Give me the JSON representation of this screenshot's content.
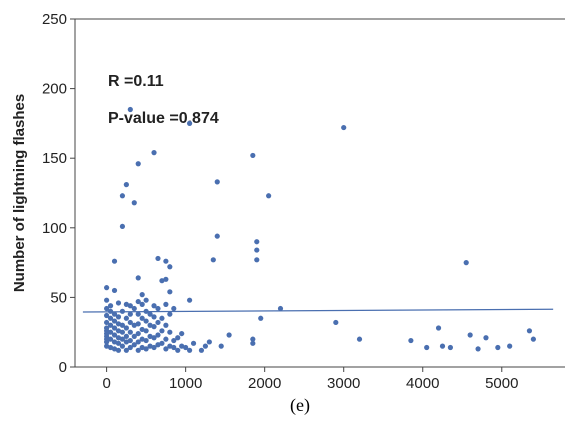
{
  "chart_data": {
    "type": "scatter",
    "title": "",
    "xlabel": "",
    "ylabel": "Number of lightning flashes",
    "xlim": [
      -400,
      5800
    ],
    "ylim": [
      0,
      250
    ],
    "xticks": [
      "0",
      "1000",
      "2000",
      "3000",
      "4000",
      "5000"
    ],
    "yticks": [
      "0",
      "50",
      "100",
      "150",
      "200",
      "250"
    ],
    "grid": false,
    "annotations": [
      "R =0.11",
      "P-value =0.874"
    ],
    "caption": "(e)",
    "point_color": "#4a6fb0",
    "line_color": "#4a6fb0",
    "regression_line": {
      "x": [
        -300,
        5650
      ],
      "y": [
        39.5,
        41.5
      ]
    },
    "points": [
      [
        0,
        15
      ],
      [
        0,
        18
      ],
      [
        0,
        20
      ],
      [
        0,
        22
      ],
      [
        0,
        24
      ],
      [
        0,
        26
      ],
      [
        0,
        28
      ],
      [
        0,
        32
      ],
      [
        0,
        37
      ],
      [
        0,
        42
      ],
      [
        0,
        48
      ],
      [
        0,
        57
      ],
      [
        50,
        14
      ],
      [
        50,
        20
      ],
      [
        50,
        25
      ],
      [
        50,
        30
      ],
      [
        50,
        35
      ],
      [
        50,
        40
      ],
      [
        50,
        44
      ],
      [
        100,
        13
      ],
      [
        100,
        18
      ],
      [
        100,
        23
      ],
      [
        100,
        28
      ],
      [
        100,
        33
      ],
      [
        100,
        38
      ],
      [
        100,
        55
      ],
      [
        100,
        76
      ],
      [
        150,
        12
      ],
      [
        150,
        17
      ],
      [
        150,
        21
      ],
      [
        150,
        26
      ],
      [
        150,
        31
      ],
      [
        150,
        36
      ],
      [
        150,
        46
      ],
      [
        200,
        15
      ],
      [
        200,
        20
      ],
      [
        200,
        25
      ],
      [
        200,
        30
      ],
      [
        200,
        40
      ],
      [
        200,
        101
      ],
      [
        200,
        123
      ],
      [
        250,
        12
      ],
      [
        250,
        18
      ],
      [
        250,
        22
      ],
      [
        250,
        28
      ],
      [
        250,
        35
      ],
      [
        250,
        45
      ],
      [
        250,
        131
      ],
      [
        300,
        14
      ],
      [
        300,
        19
      ],
      [
        300,
        25
      ],
      [
        300,
        32
      ],
      [
        300,
        38
      ],
      [
        300,
        44
      ],
      [
        300,
        185
      ],
      [
        350,
        16
      ],
      [
        350,
        22
      ],
      [
        350,
        30
      ],
      [
        350,
        42
      ],
      [
        350,
        118
      ],
      [
        400,
        12
      ],
      [
        400,
        18
      ],
      [
        400,
        24
      ],
      [
        400,
        31
      ],
      [
        400,
        38
      ],
      [
        400,
        47
      ],
      [
        400,
        64
      ],
      [
        400,
        146
      ],
      [
        450,
        14
      ],
      [
        450,
        20
      ],
      [
        450,
        27
      ],
      [
        450,
        35
      ],
      [
        450,
        45
      ],
      [
        450,
        52
      ],
      [
        500,
        13
      ],
      [
        500,
        19
      ],
      [
        500,
        26
      ],
      [
        500,
        33
      ],
      [
        500,
        40
      ],
      [
        500,
        48
      ],
      [
        550,
        15
      ],
      [
        550,
        22
      ],
      [
        550,
        30
      ],
      [
        550,
        38
      ],
      [
        600,
        14
      ],
      [
        600,
        21
      ],
      [
        600,
        29
      ],
      [
        600,
        36
      ],
      [
        600,
        44
      ],
      [
        600,
        154
      ],
      [
        650,
        16
      ],
      [
        650,
        23
      ],
      [
        650,
        32
      ],
      [
        650,
        42
      ],
      [
        650,
        78
      ],
      [
        700,
        17
      ],
      [
        700,
        26
      ],
      [
        700,
        35
      ],
      [
        700,
        62
      ],
      [
        750,
        13
      ],
      [
        750,
        20
      ],
      [
        750,
        30
      ],
      [
        750,
        45
      ],
      [
        750,
        63
      ],
      [
        750,
        76
      ],
      [
        800,
        15
      ],
      [
        800,
        25
      ],
      [
        800,
        38
      ],
      [
        800,
        54
      ],
      [
        800,
        72
      ],
      [
        850,
        14
      ],
      [
        850,
        19
      ],
      [
        850,
        42
      ],
      [
        900,
        12
      ],
      [
        900,
        21
      ],
      [
        950,
        15
      ],
      [
        950,
        24
      ],
      [
        1000,
        14
      ],
      [
        1050,
        12
      ],
      [
        1050,
        48
      ],
      [
        1050,
        175
      ],
      [
        1100,
        17
      ],
      [
        1200,
        12
      ],
      [
        1250,
        15
      ],
      [
        1300,
        18
      ],
      [
        1350,
        77
      ],
      [
        1400,
        94
      ],
      [
        1400,
        133
      ],
      [
        1450,
        15
      ],
      [
        1550,
        23
      ],
      [
        1850,
        17
      ],
      [
        1850,
        20
      ],
      [
        1850,
        152
      ],
      [
        1900,
        77
      ],
      [
        1900,
        84
      ],
      [
        1900,
        90
      ],
      [
        1950,
        35
      ],
      [
        2050,
        123
      ],
      [
        2200,
        42
      ],
      [
        2900,
        32
      ],
      [
        3000,
        172
      ],
      [
        3200,
        20
      ],
      [
        3850,
        19
      ],
      [
        4050,
        14
      ],
      [
        4200,
        28
      ],
      [
        4250,
        15
      ],
      [
        4350,
        14
      ],
      [
        4550,
        75
      ],
      [
        4600,
        23
      ],
      [
        4700,
        13
      ],
      [
        4800,
        21
      ],
      [
        4950,
        14
      ],
      [
        5100,
        15
      ],
      [
        5350,
        26
      ],
      [
        5400,
        20
      ]
    ]
  }
}
